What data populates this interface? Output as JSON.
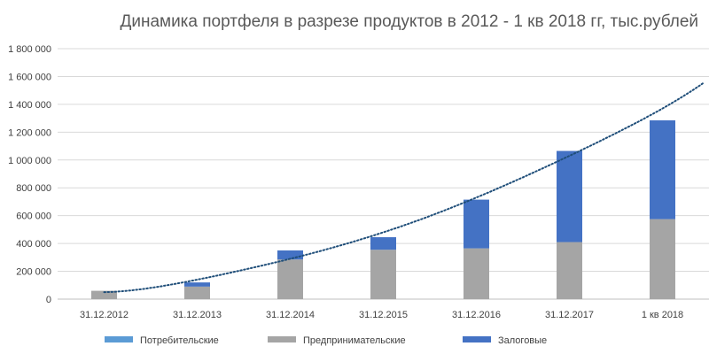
{
  "chart_data": {
    "type": "bar",
    "stacked": true,
    "title": "Динамика портфеля в разрезе продуктов в 2012 - 1 кв 2018 гг, тыс.рублей",
    "categories": [
      "31.12.2012",
      "31.12.2013",
      "31.12.2014",
      "31.12.2015",
      "31.12.2016",
      "31.12.2017",
      "1 кв 2018"
    ],
    "series": [
      {
        "name": "Потребительские",
        "color": "#5b9bd5",
        "values": [
          0,
          0,
          0,
          0,
          0,
          0,
          0
        ]
      },
      {
        "name": "Предпринимательские",
        "color": "#a5a5a5",
        "values": [
          60000,
          90000,
          285000,
          355000,
          365000,
          410000,
          575000
        ]
      },
      {
        "name": "Залоговые",
        "color": "#4472c4",
        "values": [
          0,
          30000,
          65000,
          90000,
          350000,
          655000,
          710000
        ]
      }
    ],
    "trendline": {
      "type": "polynomial",
      "style": "dotted",
      "color": "#1f4e79",
      "values": [
        50000,
        140000,
        290000,
        480000,
        730000,
        1030000,
        1370000
      ]
    },
    "yticks": [
      "0",
      "200 000",
      "400 000",
      "600 000",
      "800 000",
      "1 000 000",
      "1 200 000",
      "1 400 000",
      "1 600 000",
      "1 800 000"
    ],
    "ylim": [
      0,
      1800000
    ],
    "grid": true,
    "legend_position": "bottom-left"
  }
}
